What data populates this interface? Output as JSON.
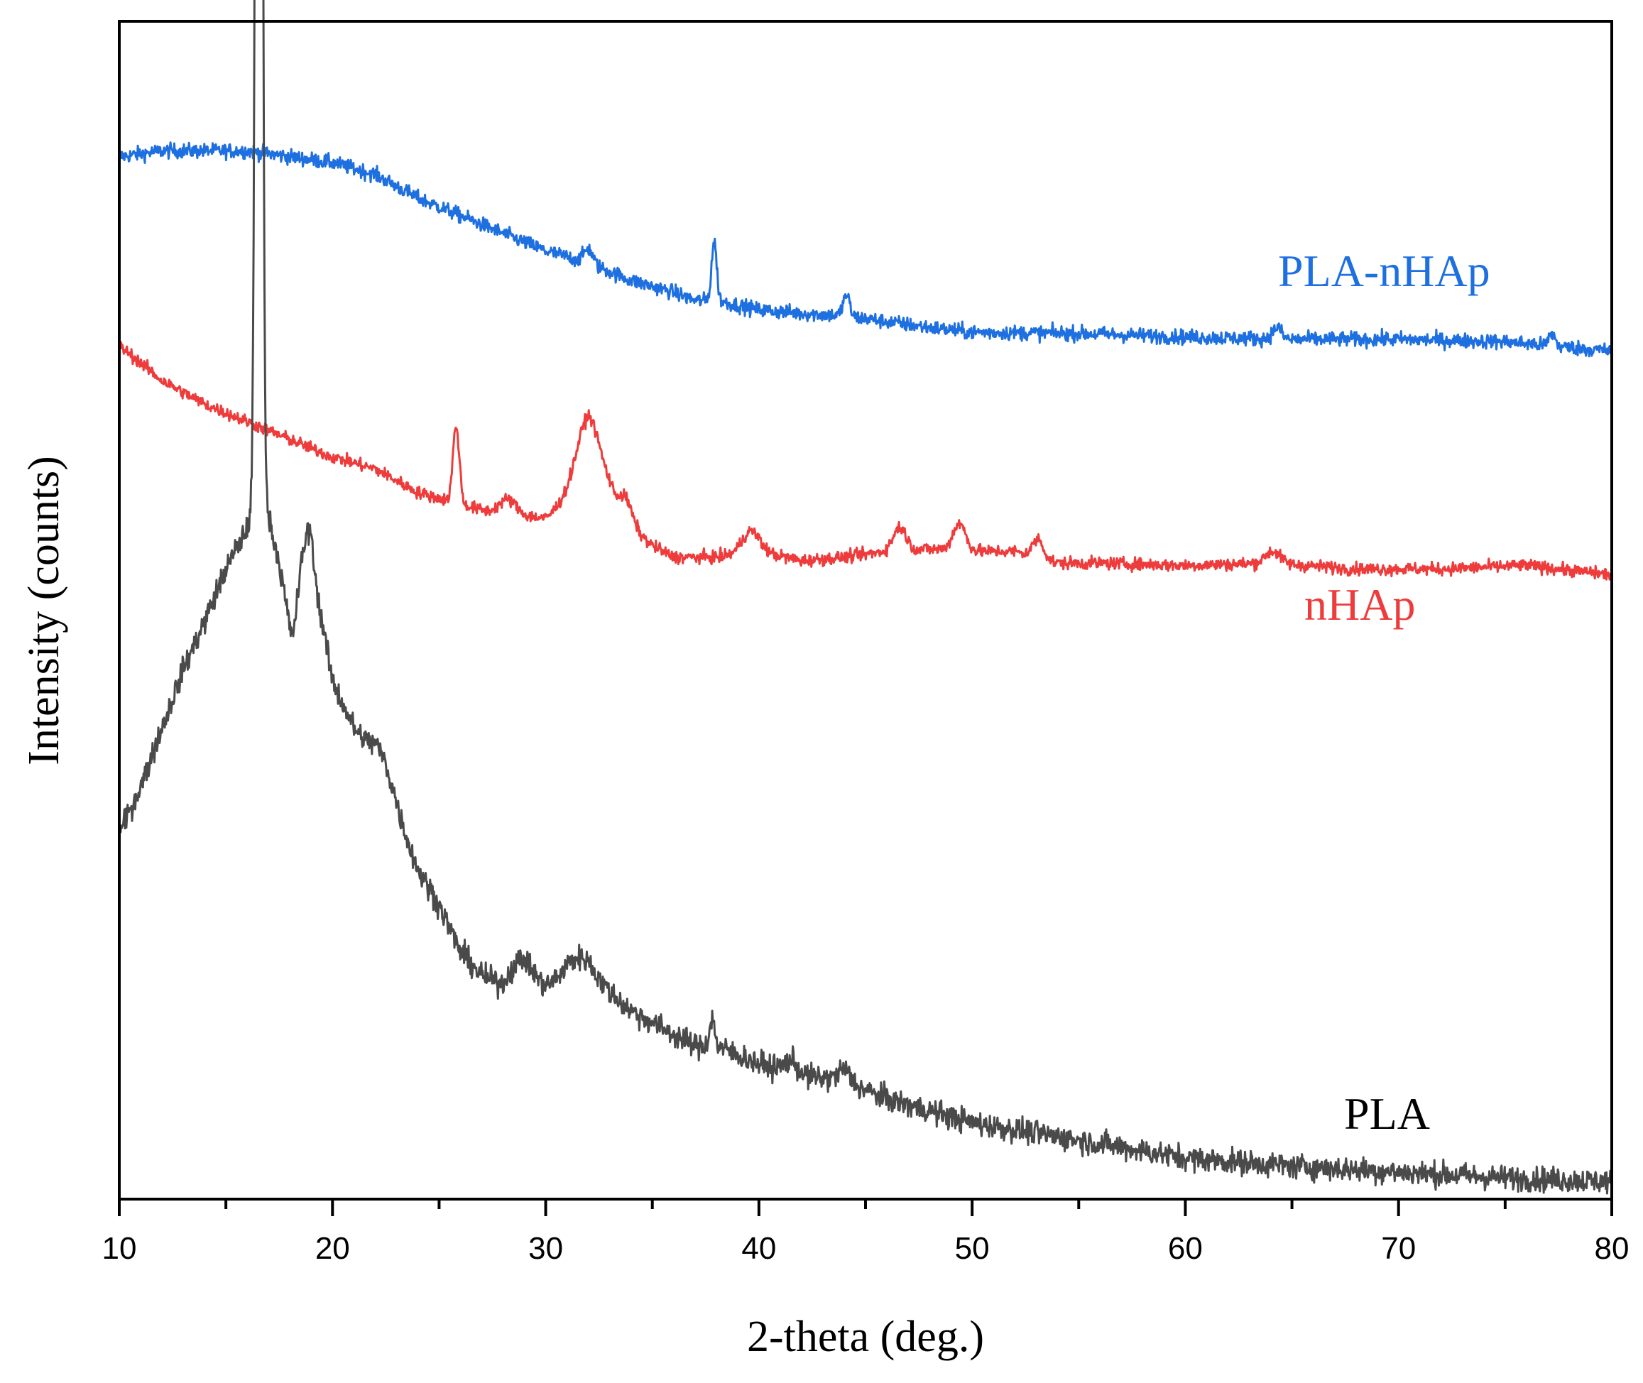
{
  "chart_data": {
    "type": "line",
    "title": "",
    "xlabel": "2-theta (deg.)",
    "ylabel": "Intensity (counts)",
    "xlim": [
      10,
      80
    ],
    "ylim": [
      0,
      100
    ],
    "yticks_shown": false,
    "grid": false,
    "xticks": [
      "10",
      "20",
      "30",
      "40",
      "50",
      "60",
      "70",
      "80"
    ],
    "series": [
      {
        "name": "PLA",
        "label": "PLA",
        "color": "#4a4a4a",
        "noise": 1.0,
        "baseline": [
          [
            10,
            31
          ],
          [
            11,
            35
          ],
          [
            12,
            40
          ],
          [
            13,
            45
          ],
          [
            14,
            49
          ],
          [
            15,
            53.5
          ],
          [
            16,
            57
          ],
          [
            16.3,
            59
          ],
          [
            17,
            58
          ],
          [
            17.5,
            54
          ],
          [
            18.1,
            47.5
          ],
          [
            18.5,
            52
          ],
          [
            19,
            53
          ],
          [
            19.5,
            49
          ],
          [
            20,
            44
          ],
          [
            21,
            40
          ],
          [
            22,
            37
          ],
          [
            23,
            33
          ],
          [
            24,
            28
          ],
          [
            25,
            25
          ],
          [
            26,
            21
          ],
          [
            27,
            19
          ],
          [
            28,
            18
          ],
          [
            29,
            19
          ],
          [
            30,
            18
          ],
          [
            31,
            19
          ],
          [
            32,
            19
          ],
          [
            33,
            17.5
          ],
          [
            34,
            16
          ],
          [
            35,
            15
          ],
          [
            36,
            14
          ],
          [
            37,
            13
          ],
          [
            38,
            13
          ],
          [
            40,
            11.5
          ],
          [
            42,
            10.5
          ],
          [
            44,
            10
          ],
          [
            46,
            8.5
          ],
          [
            48,
            7.5
          ],
          [
            50,
            6.5
          ],
          [
            55,
            5
          ],
          [
            60,
            3.5
          ],
          [
            65,
            2.8
          ],
          [
            70,
            2.3
          ],
          [
            75,
            1.8
          ],
          [
            80,
            1.5
          ]
        ],
        "peaks": [
          [
            16.55,
            200,
            0.12
          ],
          [
            18.85,
            4,
            0.25
          ],
          [
            22.3,
            2,
            0.5
          ],
          [
            28.8,
            1.5,
            0.5
          ],
          [
            31.6,
            1.5,
            0.6
          ],
          [
            37.8,
            2.3,
            0.12
          ],
          [
            41.5,
            1,
            0.3
          ],
          [
            44,
            1,
            0.3
          ]
        ]
      },
      {
        "name": "nHAp",
        "label": "nHAp",
        "color": "#ee3b3b",
        "noise": 0.5,
        "baseline": [
          [
            10,
            72.5
          ],
          [
            12,
            69.5
          ],
          [
            14,
            67.5
          ],
          [
            16,
            66
          ],
          [
            18,
            64.5
          ],
          [
            20,
            63
          ],
          [
            22,
            62
          ],
          [
            24,
            60
          ],
          [
            25,
            59.5
          ],
          [
            26,
            59
          ],
          [
            27,
            58.5
          ],
          [
            28,
            58
          ],
          [
            29,
            58
          ],
          [
            30,
            57.8
          ],
          [
            31,
            59.5
          ],
          [
            32,
            61
          ],
          [
            33,
            60
          ],
          [
            34,
            57
          ],
          [
            35,
            55.5
          ],
          [
            36,
            54.5
          ],
          [
            38,
            54.5
          ],
          [
            40,
            55
          ],
          [
            42,
            54.2
          ],
          [
            44,
            54.5
          ],
          [
            46,
            55
          ],
          [
            48,
            55.2
          ],
          [
            50,
            55
          ],
          [
            52,
            55
          ],
          [
            54,
            54
          ],
          [
            56,
            54
          ],
          [
            60,
            53.8
          ],
          [
            64,
            54
          ],
          [
            68,
            53.5
          ],
          [
            72,
            53.5
          ],
          [
            76,
            53.8
          ],
          [
            80,
            53
          ]
        ],
        "peaks": [
          [
            25.8,
            6.5,
            0.15
          ],
          [
            28.2,
            1.4,
            0.4
          ],
          [
            32,
            5.5,
            0.55
          ],
          [
            33.8,
            1.8,
            0.3
          ],
          [
            39.6,
            1.8,
            0.4
          ],
          [
            46.6,
            2,
            0.3
          ],
          [
            49.4,
            2.3,
            0.3
          ],
          [
            53.1,
            1.6,
            0.25
          ],
          [
            64.1,
            1,
            0.35
          ]
        ]
      },
      {
        "name": "PLA-nHAp",
        "label": "PLA-nHAp",
        "color": "#1e6fe0",
        "noise": 0.6,
        "baseline": [
          [
            10,
            88.5
          ],
          [
            12,
            89
          ],
          [
            14,
            89
          ],
          [
            16,
            89
          ],
          [
            18,
            88.5
          ],
          [
            20,
            88
          ],
          [
            22,
            87
          ],
          [
            24,
            85
          ],
          [
            26,
            83.5
          ],
          [
            28,
            82
          ],
          [
            30,
            80.5
          ],
          [
            32,
            79.5
          ],
          [
            34,
            78
          ],
          [
            36,
            77
          ],
          [
            37,
            76.3
          ],
          [
            38,
            76.3
          ],
          [
            40,
            75.5
          ],
          [
            42,
            75.2
          ],
          [
            44,
            75
          ],
          [
            46,
            74.5
          ],
          [
            48,
            74
          ],
          [
            50,
            73.6
          ],
          [
            55,
            73.5
          ],
          [
            60,
            73.2
          ],
          [
            65,
            73
          ],
          [
            70,
            73
          ],
          [
            75,
            72.8
          ],
          [
            80,
            72
          ]
        ],
        "peaks": [
          [
            32,
            1.2,
            0.2
          ],
          [
            37.9,
            5,
            0.12
          ],
          [
            44.1,
            1.8,
            0.15
          ],
          [
            64.3,
            1,
            0.2
          ],
          [
            77.2,
            1,
            0.15
          ]
        ]
      }
    ]
  }
}
